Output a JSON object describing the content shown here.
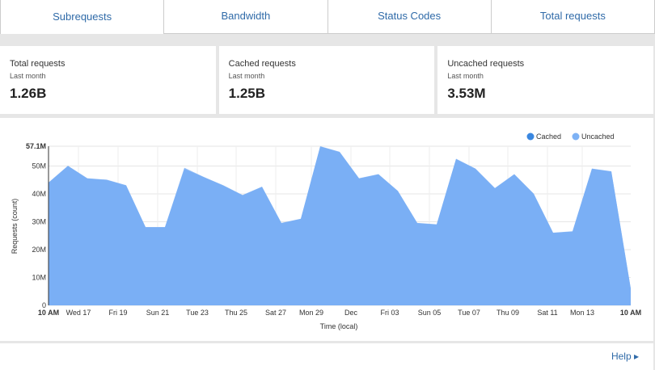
{
  "tabs": [
    {
      "label": "Subrequests",
      "active": true
    },
    {
      "label": "Bandwidth"
    },
    {
      "label": "Status Codes"
    },
    {
      "label": "Total requests"
    }
  ],
  "cards": [
    {
      "title": "Total requests",
      "period": "Last month",
      "value": "1.26B"
    },
    {
      "title": "Cached requests",
      "period": "Last month",
      "value": "1.25B"
    },
    {
      "title": "Uncached requests",
      "period": "Last month",
      "value": "3.53M"
    }
  ],
  "help": "Help",
  "chart_data": {
    "type": "area",
    "stacked": true,
    "xlabel": "Time (local)",
    "ylabel": "Requests (count)",
    "ylim": [
      0,
      57.1
    ],
    "yticks": [
      "0",
      "10M",
      "20M",
      "30M",
      "40M",
      "50M",
      "57.1M"
    ],
    "xticks": [
      "10 AM",
      "Wed 17",
      "Fri 19",
      "Sun 21",
      "Tue 23",
      "Thu 25",
      "Sat 27",
      "Mon 29",
      "Dec",
      "Fri 03",
      "Sun 05",
      "Tue 07",
      "Thu 09",
      "Sat 11",
      "Mon 13",
      "10 AM"
    ],
    "grid": true,
    "legend": "top-right",
    "colors": {
      "Cached": "#3a87e0",
      "Uncached": "#7eb2f5",
      "fill": "#7aaff5"
    },
    "series": [
      {
        "name": "Cached",
        "unit": "M",
        "values": [
          44,
          50,
          45.5,
          45,
          43,
          28,
          28,
          49,
          46,
          43,
          39.5,
          42.5,
          29.5,
          31,
          57,
          55,
          45.5,
          47,
          41,
          29.5,
          29,
          52.5,
          49,
          42,
          47,
          40,
          26,
          26.5,
          49,
          48,
          6
        ]
      },
      {
        "name": "Uncached",
        "unit": "M",
        "values": [
          0.1,
          0.1,
          0.1,
          0.1,
          0.1,
          0.1,
          0.1,
          0.4,
          0.1,
          0.1,
          0.1,
          0.1,
          0.1,
          0.1,
          0.1,
          0.1,
          0.1,
          0.1,
          0.1,
          0.1,
          0.1,
          0.1,
          0.1,
          0.1,
          0.1,
          0.1,
          0.1,
          0.1,
          0.1,
          0.1,
          0.1
        ]
      }
    ]
  }
}
